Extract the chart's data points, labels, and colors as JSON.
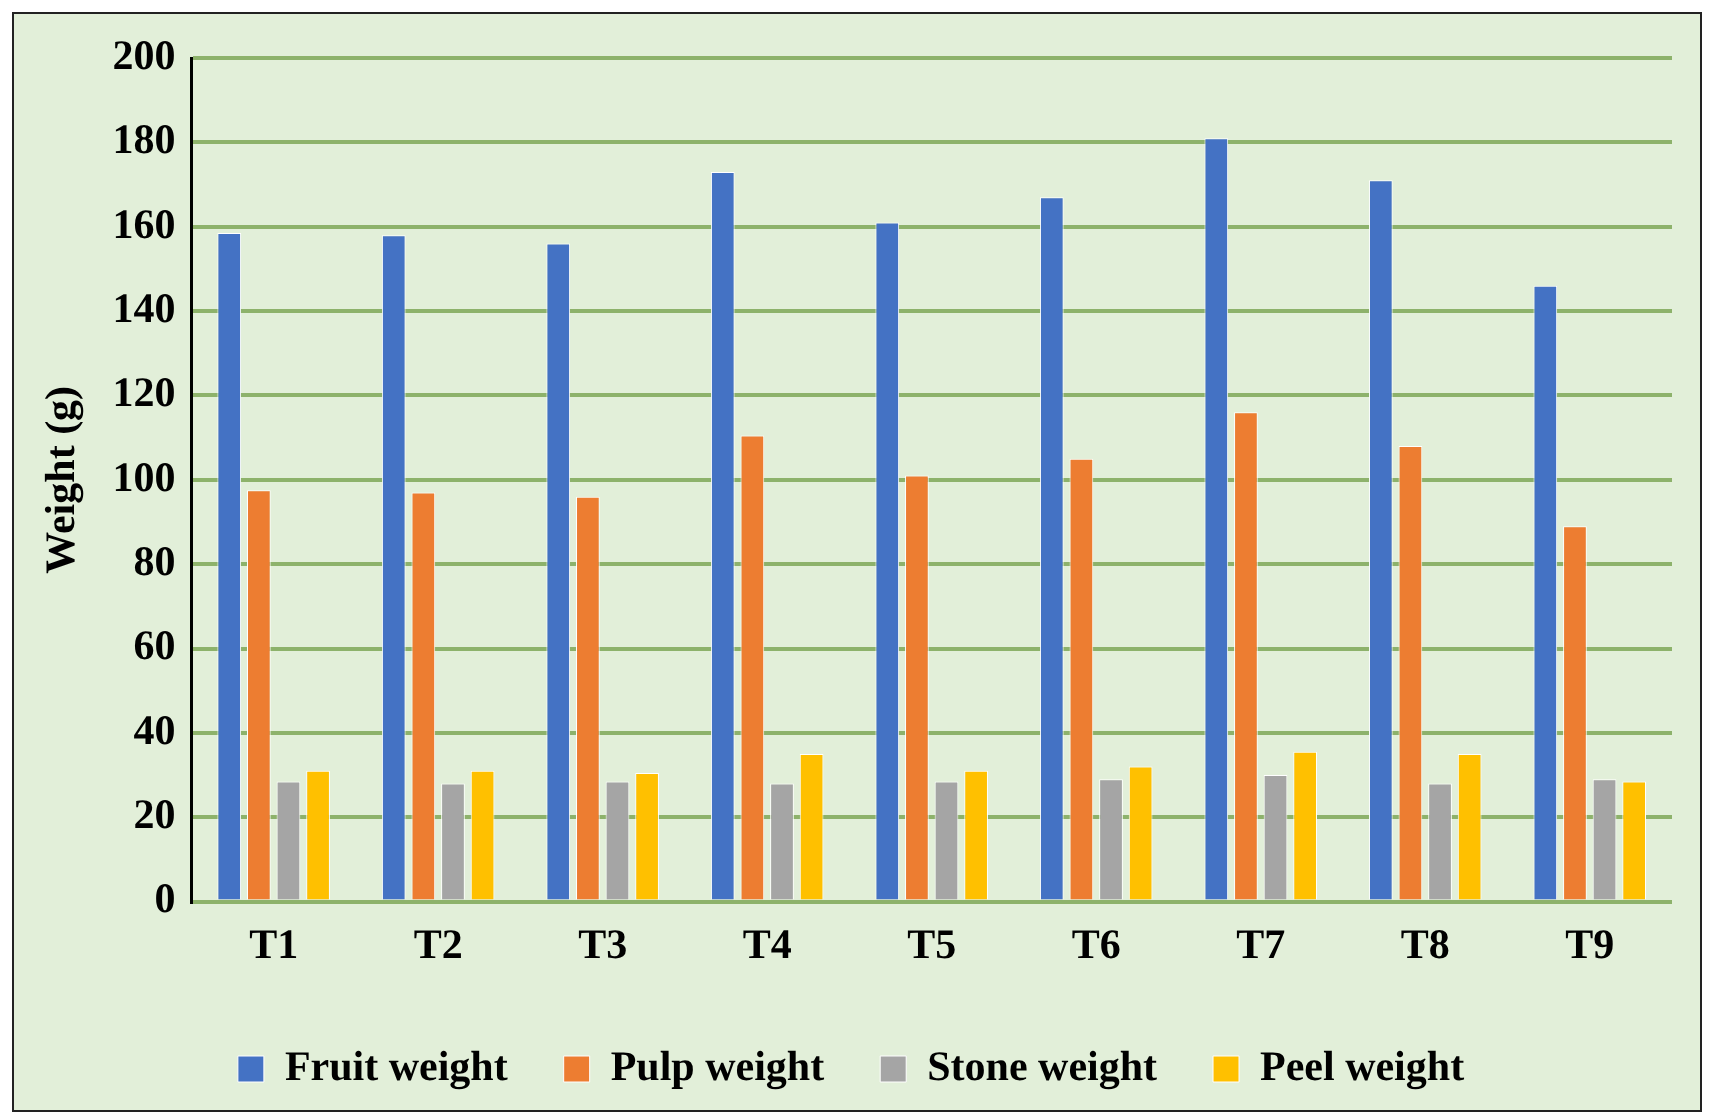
{
  "chart_data": {
    "type": "bar",
    "ylabel": "Weight (g)",
    "categories": [
      "T1",
      "T2",
      "T3",
      "T4",
      "T5",
      "T6",
      "T7",
      "T8",
      "T9"
    ],
    "series": [
      {
        "name": "Fruit weight",
        "color": "#4472c4",
        "values": [
          158.5,
          158,
          156,
          173,
          161,
          167,
          181,
          171,
          146
        ]
      },
      {
        "name": "Pulp weight",
        "color": "#ed7d31",
        "values": [
          97.5,
          97,
          96,
          110.5,
          101,
          105,
          116,
          108,
          89
        ]
      },
      {
        "name": "Stone weight",
        "color": "#a5a5a5",
        "values": [
          28.5,
          28,
          28.5,
          28,
          28.5,
          29,
          30,
          28,
          29
        ]
      },
      {
        "name": "Peel weight",
        "color": "#ffc000",
        "values": [
          31,
          31,
          30.5,
          35,
          31,
          32,
          35.5,
          35,
          28.5
        ]
      }
    ],
    "ylim": [
      0,
      200
    ],
    "yticks": [
      0,
      20,
      40,
      60,
      80,
      100,
      120,
      140,
      160,
      180,
      200
    ],
    "grid": "y",
    "legend": "bottom"
  }
}
